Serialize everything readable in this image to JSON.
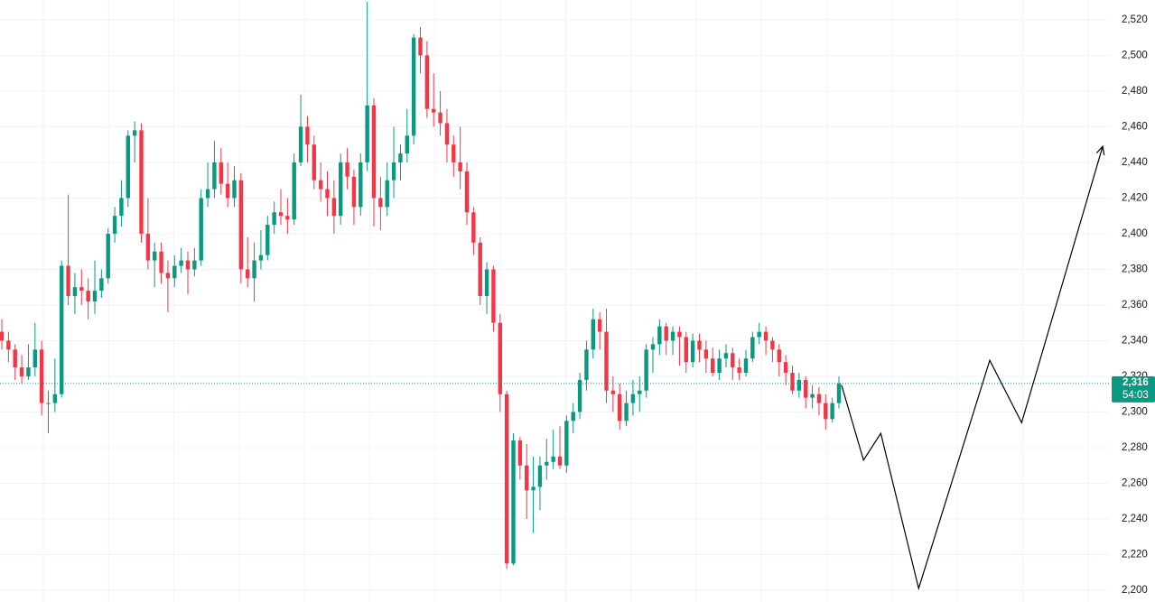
{
  "chart_data": {
    "type": "candlestick",
    "up_color": "#089981",
    "down_color": "#f23645",
    "grid": true,
    "ylim": [
      2193.4,
      2531.1
    ],
    "yticks": [
      {
        "value": 2200,
        "label": "2,200"
      },
      {
        "value": 2220,
        "label": "2,220"
      },
      {
        "value": 2240,
        "label": "2,240"
      },
      {
        "value": 2260,
        "label": "2,260"
      },
      {
        "value": 2280,
        "label": "2,280"
      },
      {
        "value": 2300,
        "label": "2,300"
      },
      {
        "value": 2320,
        "label": "2,320"
      },
      {
        "value": 2340,
        "label": "2,340"
      },
      {
        "value": 2360,
        "label": "2,360"
      },
      {
        "value": 2380,
        "label": "2,380"
      },
      {
        "value": 2400,
        "label": "2,400"
      },
      {
        "value": 2420,
        "label": "2,420"
      },
      {
        "value": 2440,
        "label": "2,440"
      },
      {
        "value": 2460,
        "label": "2,460"
      },
      {
        "value": 2480,
        "label": "2,480"
      },
      {
        "value": 2500,
        "label": "2,500"
      },
      {
        "value": 2520,
        "label": "2,520"
      }
    ],
    "candles": [
      [
        2345,
        2352,
        2335,
        2340
      ],
      [
        2340,
        2345,
        2328,
        2335
      ],
      [
        2335,
        2338,
        2318,
        2325
      ],
      [
        2325,
        2332,
        2316,
        2320
      ],
      [
        2320,
        2338,
        2318,
        2325
      ],
      [
        2325,
        2350,
        2320,
        2335
      ],
      [
        2335,
        2340,
        2298,
        2305
      ],
      [
        2305,
        2312,
        2288,
        2305
      ],
      [
        2305,
        2330,
        2300,
        2310
      ],
      [
        2310,
        2385,
        2308,
        2382
      ],
      [
        2382,
        2422,
        2360,
        2365
      ],
      [
        2365,
        2378,
        2355,
        2370
      ],
      [
        2370,
        2380,
        2360,
        2368
      ],
      [
        2368,
        2375,
        2352,
        2362
      ],
      [
        2362,
        2385,
        2355,
        2368
      ],
      [
        2368,
        2380,
        2364,
        2375
      ],
      [
        2375,
        2403,
        2372,
        2400
      ],
      [
        2400,
        2415,
        2395,
        2410
      ],
      [
        2410,
        2430,
        2404,
        2420
      ],
      [
        2420,
        2458,
        2415,
        2455
      ],
      [
        2455,
        2463,
        2440,
        2458
      ],
      [
        2458,
        2462,
        2395,
        2400
      ],
      [
        2400,
        2420,
        2380,
        2385
      ],
      [
        2385,
        2395,
        2370,
        2390
      ],
      [
        2390,
        2395,
        2372,
        2378
      ],
      [
        2378,
        2385,
        2356,
        2375
      ],
      [
        2375,
        2388,
        2370,
        2382
      ],
      [
        2382,
        2392,
        2378,
        2385
      ],
      [
        2385,
        2390,
        2366,
        2380
      ],
      [
        2380,
        2392,
        2376,
        2385
      ],
      [
        2385,
        2425,
        2382,
        2420
      ],
      [
        2420,
        2440,
        2415,
        2425
      ],
      [
        2425,
        2452,
        2420,
        2440
      ],
      [
        2440,
        2448,
        2422,
        2428
      ],
      [
        2428,
        2440,
        2415,
        2420
      ],
      [
        2420,
        2438,
        2415,
        2430
      ],
      [
        2430,
        2434,
        2372,
        2380
      ],
      [
        2380,
        2398,
        2370,
        2375
      ],
      [
        2375,
        2395,
        2362,
        2385
      ],
      [
        2385,
        2402,
        2380,
        2388
      ],
      [
        2388,
        2410,
        2385,
        2405
      ],
      [
        2405,
        2418,
        2400,
        2412
      ],
      [
        2412,
        2425,
        2405,
        2410
      ],
      [
        2410,
        2420,
        2400,
        2408
      ],
      [
        2408,
        2445,
        2405,
        2440
      ],
      [
        2440,
        2478,
        2438,
        2460
      ],
      [
        2460,
        2466,
        2440,
        2450
      ],
      [
        2450,
        2455,
        2425,
        2430
      ],
      [
        2430,
        2440,
        2418,
        2425
      ],
      [
        2425,
        2435,
        2410,
        2420
      ],
      [
        2420,
        2430,
        2400,
        2410
      ],
      [
        2410,
        2445,
        2405,
        2440
      ],
      [
        2440,
        2448,
        2425,
        2432
      ],
      [
        2432,
        2436,
        2405,
        2415
      ],
      [
        2415,
        2445,
        2410,
        2440
      ],
      [
        2440,
        2530,
        2435,
        2472
      ],
      [
        2472,
        2476,
        2404,
        2420
      ],
      [
        2420,
        2432,
        2402,
        2415
      ],
      [
        2415,
        2440,
        2410,
        2430
      ],
      [
        2430,
        2460,
        2420,
        2440
      ],
      [
        2440,
        2450,
        2430,
        2445
      ],
      [
        2445,
        2470,
        2440,
        2455
      ],
      [
        2455,
        2512,
        2450,
        2510
      ],
      [
        2510,
        2516,
        2490,
        2500
      ],
      [
        2500,
        2508,
        2465,
        2470
      ],
      [
        2470,
        2490,
        2460,
        2468
      ],
      [
        2468,
        2480,
        2455,
        2462
      ],
      [
        2462,
        2470,
        2440,
        2450
      ],
      [
        2450,
        2455,
        2432,
        2440
      ],
      [
        2440,
        2460,
        2425,
        2435
      ],
      [
        2435,
        2440,
        2405,
        2412
      ],
      [
        2412,
        2415,
        2388,
        2395
      ],
      [
        2395,
        2398,
        2360,
        2365
      ],
      [
        2365,
        2384,
        2355,
        2380
      ],
      [
        2380,
        2382,
        2345,
        2350
      ],
      [
        2350,
        2355,
        2300,
        2310
      ],
      [
        2310,
        2312,
        2212,
        2215
      ],
      [
        2215,
        2288,
        2214,
        2284
      ],
      [
        2284,
        2286,
        2262,
        2270
      ],
      [
        2270,
        2282,
        2240,
        2256
      ],
      [
        2256,
        2275,
        2232,
        2258
      ],
      [
        2258,
        2275,
        2245,
        2270
      ],
      [
        2270,
        2285,
        2262,
        2272
      ],
      [
        2272,
        2290,
        2268,
        2275
      ],
      [
        2275,
        2292,
        2268,
        2270
      ],
      [
        2270,
        2298,
        2266,
        2295
      ],
      [
        2295,
        2305,
        2288,
        2300
      ],
      [
        2300,
        2322,
        2296,
        2318
      ],
      [
        2318,
        2340,
        2312,
        2335
      ],
      [
        2335,
        2358,
        2330,
        2352
      ],
      [
        2352,
        2356,
        2335,
        2345
      ],
      [
        2345,
        2358,
        2305,
        2312
      ],
      [
        2312,
        2320,
        2300,
        2310
      ],
      [
        2310,
        2316,
        2290,
        2295
      ],
      [
        2295,
        2312,
        2292,
        2305
      ],
      [
        2305,
        2318,
        2298,
        2310
      ],
      [
        2310,
        2320,
        2300,
        2312
      ],
      [
        2312,
        2338,
        2308,
        2335
      ],
      [
        2335,
        2342,
        2322,
        2338
      ],
      [
        2338,
        2352,
        2332,
        2348
      ],
      [
        2348,
        2350,
        2332,
        2340
      ],
      [
        2340,
        2348,
        2332,
        2345
      ],
      [
        2345,
        2348,
        2326,
        2342
      ],
      [
        2342,
        2345,
        2322,
        2328
      ],
      [
        2328,
        2344,
        2325,
        2340
      ],
      [
        2340,
        2344,
        2328,
        2335
      ],
      [
        2335,
        2340,
        2322,
        2330
      ],
      [
        2330,
        2336,
        2320,
        2322
      ],
      [
        2322,
        2335,
        2318,
        2330
      ],
      [
        2330,
        2338,
        2325,
        2333
      ],
      [
        2333,
        2336,
        2318,
        2325
      ],
      [
        2325,
        2330,
        2318,
        2322
      ],
      [
        2322,
        2335,
        2320,
        2330
      ],
      [
        2330,
        2345,
        2328,
        2342
      ],
      [
        2342,
        2350,
        2338,
        2345
      ],
      [
        2345,
        2348,
        2332,
        2340
      ],
      [
        2340,
        2342,
        2328,
        2335
      ],
      [
        2335,
        2338,
        2320,
        2328
      ],
      [
        2328,
        2332,
        2315,
        2322
      ],
      [
        2322,
        2326,
        2310,
        2312
      ],
      [
        2312,
        2322,
        2308,
        2318
      ],
      [
        2318,
        2320,
        2302,
        2308
      ],
      [
        2308,
        2315,
        2302,
        2310
      ],
      [
        2310,
        2314,
        2298,
        2305
      ],
      [
        2305,
        2310,
        2290,
        2296
      ],
      [
        2296,
        2308,
        2294,
        2305
      ],
      [
        2305,
        2320,
        2302,
        2316
      ]
    ],
    "projection": {
      "color": "#000000",
      "x": [
        126.4,
        129.7,
        132.3,
        138,
        148.7,
        153.5,
        165.7
      ],
      "values": [
        2315,
        2273,
        2288,
        2201,
        2329,
        2294,
        2449
      ]
    },
    "last_price": {
      "value": 2316,
      "label": "2,316",
      "color": "#089981"
    },
    "countdown": "54:03"
  }
}
